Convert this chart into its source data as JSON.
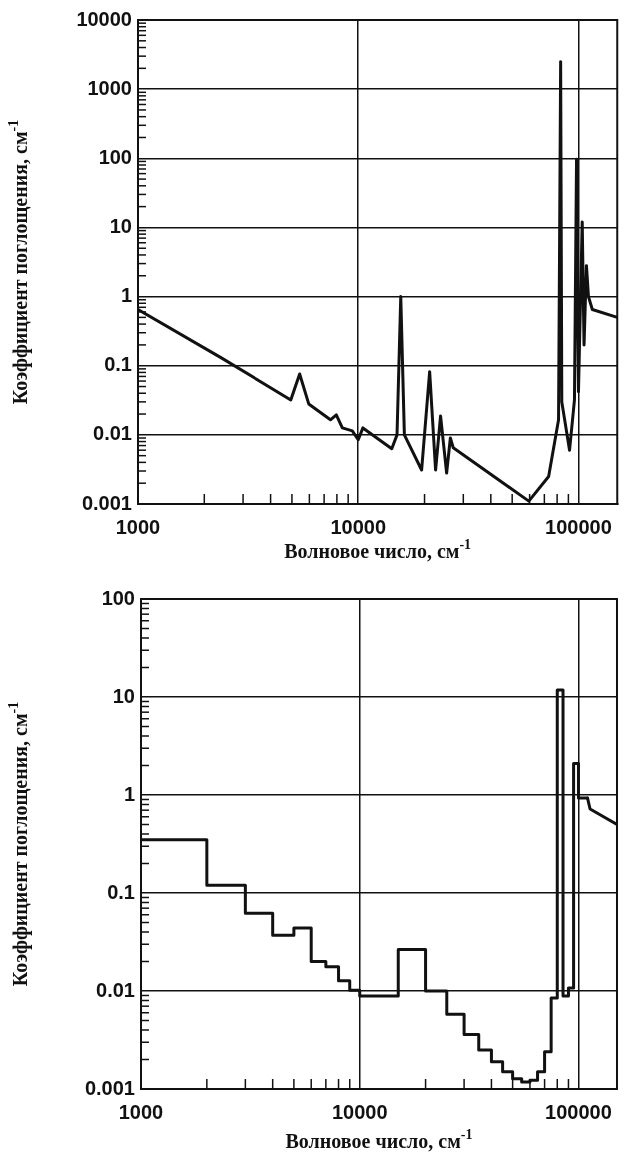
{
  "chart_data": [
    {
      "type": "line",
      "xlabel": "Волновое число, см$^{-1}$",
      "ylabel": "Коэффициент поглощения, см$^{-1}$",
      "log": "xy",
      "grid": true,
      "legend": false,
      "marker": "none",
      "line_style": "solid",
      "xlim": [
        1000,
        150000
      ],
      "ylim": [
        0.001,
        10000
      ],
      "xticks": [
        1000,
        {
          "value": 2000,
          "label": null
        },
        {
          "value": 3000,
          "label": null
        },
        {
          "value": 4000,
          "label": null
        },
        {
          "value": 5000,
          "label": null
        },
        {
          "value": 6000,
          "label": null
        },
        {
          "value": 7000,
          "label": null
        },
        {
          "value": 8000,
          "label": null
        },
        {
          "value": 9000,
          "label": null
        },
        10000,
        {
          "value": 20000,
          "label": null
        },
        {
          "value": 30000,
          "label": null
        },
        {
          "value": 40000,
          "label": null
        },
        {
          "value": 50000,
          "label": null
        },
        {
          "value": 60000,
          "label": null
        },
        {
          "value": 70000,
          "label": null
        },
        {
          "value": 80000,
          "label": null
        },
        {
          "value": 90000,
          "label": null
        },
        100000
      ],
      "yticks": [
        0.001,
        {
          "value": 0.002,
          "label": null
        },
        {
          "value": 0.003,
          "label": null
        },
        {
          "value": 0.004,
          "label": null
        },
        {
          "value": 0.005,
          "label": null
        },
        {
          "value": 0.006,
          "label": null
        },
        {
          "value": 0.007,
          "label": null
        },
        {
          "value": 0.008,
          "label": null
        },
        {
          "value": 0.009,
          "label": null
        },
        0.01,
        {
          "value": 0.02,
          "label": null
        },
        {
          "value": 0.03,
          "label": null
        },
        {
          "value": 0.04,
          "label": null
        },
        {
          "value": 0.05,
          "label": null
        },
        {
          "value": 0.06,
          "label": null
        },
        {
          "value": 0.07,
          "label": null
        },
        {
          "value": 0.08,
          "label": null
        },
        {
          "value": 0.09,
          "label": null
        },
        0.1,
        {
          "value": 0.2,
          "label": null
        },
        {
          "value": 0.3,
          "label": null
        },
        {
          "value": 0.4,
          "label": null
        },
        {
          "value": 0.5,
          "label": null
        },
        {
          "value": 0.6,
          "label": null
        },
        {
          "value": 0.7,
          "label": null
        },
        {
          "value": 0.8,
          "label": null
        },
        {
          "value": 0.9,
          "label": null
        },
        1,
        {
          "value": 2,
          "label": null
        },
        {
          "value": 3,
          "label": null
        },
        {
          "value": 4,
          "label": null
        },
        {
          "value": 5,
          "label": null
        },
        {
          "value": 6,
          "label": null
        },
        {
          "value": 7,
          "label": null
        },
        {
          "value": 8,
          "label": null
        },
        {
          "value": 9,
          "label": null
        },
        10,
        {
          "value": 20,
          "label": null
        },
        {
          "value": 30,
          "label": null
        },
        {
          "value": 40,
          "label": null
        },
        {
          "value": 50,
          "label": null
        },
        {
          "value": 60,
          "label": null
        },
        {
          "value": 70,
          "label": null
        },
        {
          "value": 80,
          "label": null
        },
        {
          "value": 90,
          "label": null
        },
        100,
        {
          "value": 200,
          "label": null
        },
        {
          "value": 300,
          "label": null
        },
        {
          "value": 400,
          "label": null
        },
        {
          "value": 500,
          "label": null
        },
        {
          "value": 600,
          "label": null
        },
        {
          "value": 700,
          "label": null
        },
        {
          "value": 800,
          "label": null
        },
        {
          "value": 900,
          "label": null
        },
        1000,
        {
          "value": 2000,
          "label": null
        },
        {
          "value": 3000,
          "label": null
        },
        {
          "value": 4000,
          "label": null
        },
        {
          "value": 5000,
          "label": null
        },
        {
          "value": 6000,
          "label": null
        },
        {
          "value": 7000,
          "label": null
        },
        {
          "value": 8000,
          "label": null
        },
        {
          "value": 9000,
          "label": null
        },
        10000
      ],
      "series": [
        {
          "color": "#111111",
          "x": [
            1000,
            2390,
            4940,
            5420,
            5960,
            7480,
            7950,
            8470,
            9400,
            10000,
            10500,
            14200,
            15000,
            15600,
            16200,
            19400,
            21100,
            22450,
            23650,
            25200,
            26200,
            27000,
            59500,
            73200,
            81200,
            83000,
            84000,
            91100,
            95900,
            98000,
            100000,
            104000,
            106000,
            108700,
            111000,
            115600,
            150000
          ],
          "values": [
            0.65,
            0.13,
            0.032,
            0.076,
            0.028,
            0.0165,
            0.0195,
            0.0126,
            0.0114,
            0.0085,
            0.0126,
            0.0063,
            0.01,
            1,
            0.01,
            0.0031,
            0.082,
            0.0031,
            0.0188,
            0.0028,
            0.009,
            0.0065,
            0.0011,
            0.0025,
            0.0165,
            2500,
            0.03,
            0.006,
            0.032,
            97,
            0.042,
            12,
            0.2,
            2.8,
            1,
            0.65,
            0.5
          ]
        }
      ]
    },
    {
      "type": "step",
      "xlabel": "Волновое число, см$^{-1}$",
      "ylabel": "Коэффициент поглощения, см$^{-1}$",
      "log": "xy",
      "grid": true,
      "legend": false,
      "marker": "none",
      "line_style": "solid",
      "xlim": [
        1000,
        150000
      ],
      "ylim": [
        0.001,
        100
      ],
      "xticks": [
        1000,
        {
          "value": 2000,
          "label": null
        },
        {
          "value": 3000,
          "label": null
        },
        {
          "value": 4000,
          "label": null
        },
        {
          "value": 5000,
          "label": null
        },
        {
          "value": 6000,
          "label": null
        },
        {
          "value": 7000,
          "label": null
        },
        {
          "value": 8000,
          "label": null
        },
        {
          "value": 9000,
          "label": null
        },
        10000,
        {
          "value": 20000,
          "label": null
        },
        {
          "value": 30000,
          "label": null
        },
        {
          "value": 40000,
          "label": null
        },
        {
          "value": 50000,
          "label": null
        },
        {
          "value": 60000,
          "label": null
        },
        {
          "value": 70000,
          "label": null
        },
        {
          "value": 80000,
          "label": null
        },
        {
          "value": 90000,
          "label": null
        },
        100000
      ],
      "yticks": [
        0.001,
        {
          "value": 0.002,
          "label": null
        },
        {
          "value": 0.003,
          "label": null
        },
        {
          "value": 0.004,
          "label": null
        },
        {
          "value": 0.005,
          "label": null
        },
        {
          "value": 0.006,
          "label": null
        },
        {
          "value": 0.007,
          "label": null
        },
        {
          "value": 0.008,
          "label": null
        },
        {
          "value": 0.009,
          "label": null
        },
        0.01,
        {
          "value": 0.02,
          "label": null
        },
        {
          "value": 0.03,
          "label": null
        },
        {
          "value": 0.04,
          "label": null
        },
        {
          "value": 0.05,
          "label": null
        },
        {
          "value": 0.06,
          "label": null
        },
        {
          "value": 0.07,
          "label": null
        },
        {
          "value": 0.08,
          "label": null
        },
        {
          "value": 0.09,
          "label": null
        },
        0.1,
        {
          "value": 0.2,
          "label": null
        },
        {
          "value": 0.3,
          "label": null
        },
        {
          "value": 0.4,
          "label": null
        },
        {
          "value": 0.5,
          "label": null
        },
        {
          "value": 0.6,
          "label": null
        },
        {
          "value": 0.7,
          "label": null
        },
        {
          "value": 0.8,
          "label": null
        },
        {
          "value": 0.9,
          "label": null
        },
        1,
        {
          "value": 2,
          "label": null
        },
        {
          "value": 3,
          "label": null
        },
        {
          "value": 4,
          "label": null
        },
        {
          "value": 5,
          "label": null
        },
        {
          "value": 6,
          "label": null
        },
        {
          "value": 7,
          "label": null
        },
        {
          "value": 8,
          "label": null
        },
        {
          "value": 9,
          "label": null
        },
        10,
        {
          "value": 20,
          "label": null
        },
        {
          "value": 30,
          "label": null
        },
        {
          "value": 40,
          "label": null
        },
        {
          "value": 50,
          "label": null
        },
        {
          "value": 60,
          "label": null
        },
        {
          "value": 70,
          "label": null
        },
        {
          "value": 80,
          "label": null
        },
        {
          "value": 90,
          "label": null
        },
        100
      ],
      "series": [
        {
          "color": "#111111",
          "x": [
            1000,
            2000,
            3000,
            4000,
            5000,
            6000,
            7000,
            8000,
            9000,
            10000,
            15000,
            20000,
            25000,
            30000,
            35000,
            40000,
            45000,
            50000,
            55000,
            60000,
            65000,
            70000,
            75000,
            80000,
            85000,
            90000,
            95000,
            100000,
            110000
          ],
          "values": [
            0.35,
            0.12,
            0.062,
            0.037,
            0.044,
            0.02,
            0.0177,
            0.0127,
            0.0102,
            0.0089,
            0.0265,
            0.01,
            0.0058,
            0.0036,
            0.0025,
            0.0019,
            0.0015,
            0.00127,
            0.00118,
            0.00123,
            0.0015,
            0.0024,
            0.0085,
            11.8,
            0.0089,
            0.0107,
            2.1,
            0.93,
            0.93
          ]
        },
        {
          "type": "line",
          "color": "#111111",
          "x": [
            110000,
            113000,
            150000
          ],
          "values": [
            0.93,
            0.72,
            0.5
          ]
        }
      ]
    }
  ]
}
